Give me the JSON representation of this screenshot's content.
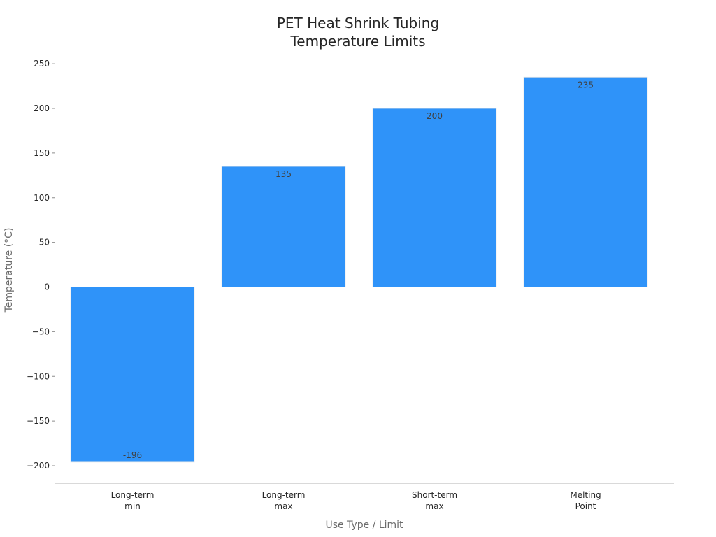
{
  "chart_data": {
    "type": "bar",
    "title": [
      "PET Heat Shrink Tubing",
      "Temperature Limits"
    ],
    "xlabel": "Use Type / Limit",
    "ylabel": "Temperature (°C)",
    "categories": [
      [
        "Long-term",
        "min"
      ],
      [
        "Long-term",
        "max"
      ],
      [
        "Short-term",
        "max"
      ],
      [
        "Melting",
        "Point"
      ]
    ],
    "values": [
      -196,
      135,
      200,
      235
    ],
    "data_labels": [
      "-196",
      "135",
      "200",
      "235"
    ],
    "ylim": [
      -220,
      260
    ],
    "yticks": [
      250,
      200,
      150,
      100,
      50,
      0,
      -50,
      -100,
      -150,
      -200
    ],
    "ytick_labels": [
      "250",
      "200",
      "150",
      "100",
      "50",
      "0",
      "−50",
      "−100",
      "−150",
      "−200"
    ],
    "grid": false,
    "bar_color": "#2f93f9"
  }
}
